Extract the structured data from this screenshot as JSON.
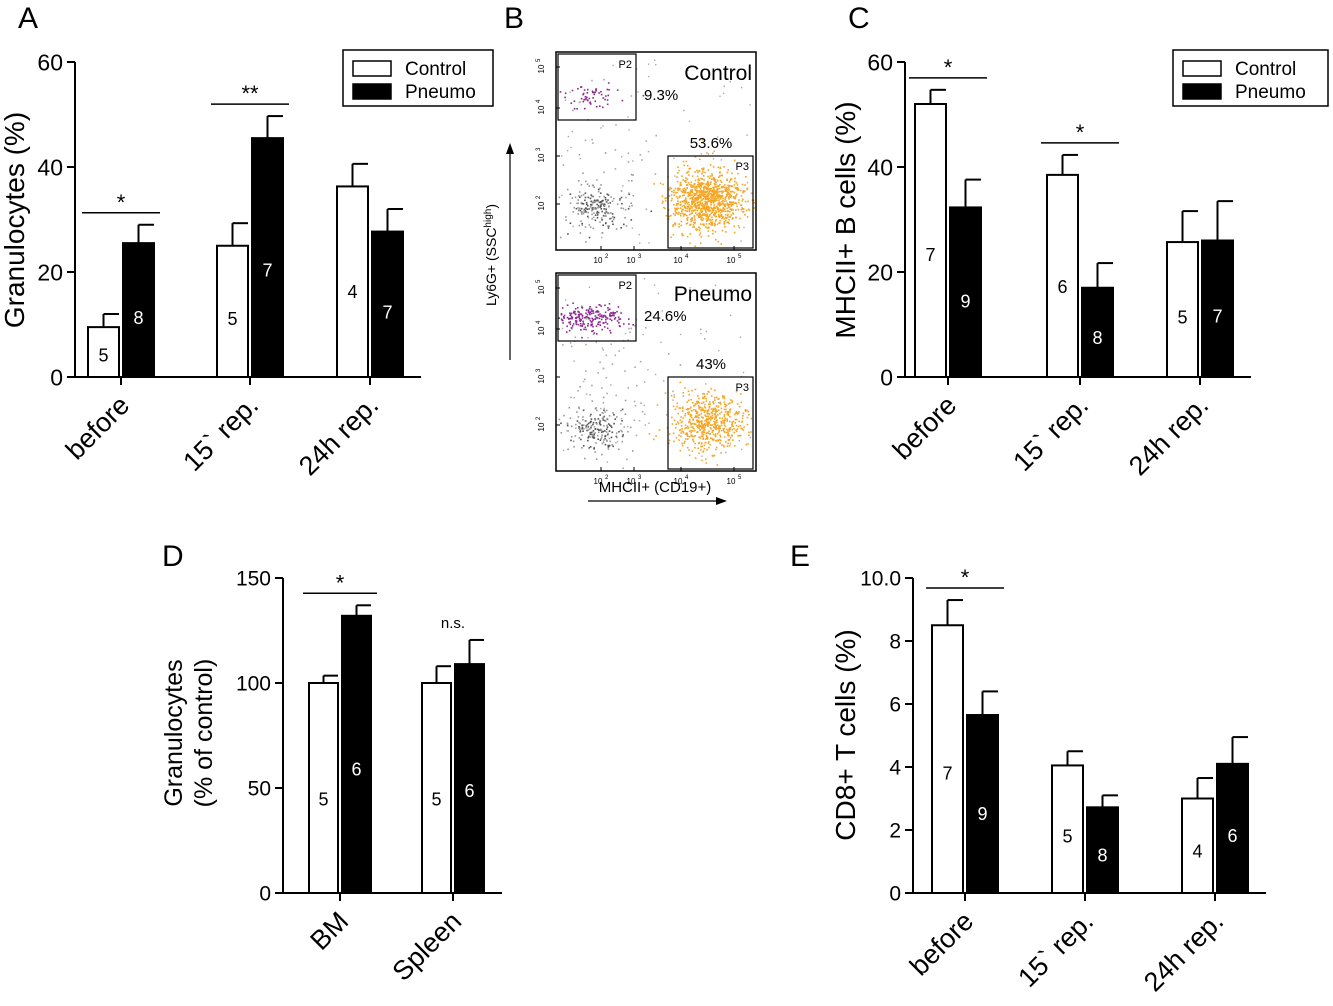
{
  "panels": {
    "A": {
      "letter": "A"
    },
    "B": {
      "letter": "B"
    },
    "C": {
      "letter": "C"
    },
    "D": {
      "letter": "D"
    },
    "E": {
      "letter": "E"
    }
  },
  "legend": {
    "control": "Control",
    "pneumo": "Pneumo"
  },
  "colors": {
    "control_fill": "#ffffff",
    "pneumo_fill": "#000000",
    "p2_dots": "#8b2a8f",
    "p3_dots": "#f5a623",
    "grey_dots": "#888888"
  },
  "chart_data": [
    {
      "panel": "A",
      "type": "bar",
      "ylabel": "Granulocytes (%)",
      "ylim": [
        0,
        60
      ],
      "yticks": [
        0,
        20,
        40,
        60
      ],
      "categories": [
        "before",
        "15` rep.",
        "24h rep."
      ],
      "series": [
        {
          "name": "Control",
          "values": [
            9.5,
            25,
            36.3
          ],
          "errors": [
            2.5,
            4.3,
            4.3
          ],
          "n": [
            "5",
            "5",
            "4"
          ]
        },
        {
          "name": "Pneumo",
          "values": [
            25.5,
            45.5,
            27.7
          ],
          "errors": [
            3.5,
            4.2,
            4.3
          ],
          "n": [
            "8",
            "7",
            "7"
          ]
        }
      ],
      "significance": [
        {
          "category": 0,
          "label": "*"
        },
        {
          "category": 1,
          "label": "**"
        }
      ],
      "legend_position": "top-right"
    },
    {
      "panel": "B",
      "type": "scatter",
      "xlabel": "MHCII+ (CD19+)",
      "ylabel": "Ly6G+ (SSC",
      "ylabel_sup": "high",
      "ylabel_end": ")",
      "x_ticks": [
        "10",
        "10",
        "10",
        "10"
      ],
      "x_tick_exp": [
        "2",
        "3",
        "4",
        "5"
      ],
      "y_ticks": [
        "10",
        "10",
        "10",
        "10"
      ],
      "y_tick_exp": [
        "2",
        "3",
        "4",
        "5"
      ],
      "plots": [
        {
          "name": "Control",
          "gates": [
            {
              "label": "P2",
              "percent": "9.3%"
            },
            {
              "label": "P3",
              "percent": "53.6%"
            }
          ]
        },
        {
          "name": "Pneumo",
          "gates": [
            {
              "label": "P2",
              "percent": "24.6%"
            },
            {
              "label": "P3",
              "percent": "43%"
            }
          ]
        }
      ]
    },
    {
      "panel": "C",
      "type": "bar",
      "ylabel": "MHCII+ B cells (%)",
      "ylim": [
        0,
        60
      ],
      "yticks": [
        0,
        20,
        40,
        60
      ],
      "categories": [
        "before",
        "15` rep.",
        "24h rep."
      ],
      "series": [
        {
          "name": "Control",
          "values": [
            52,
            38.5,
            25.7
          ],
          "errors": [
            2.7,
            3.8,
            5.9
          ],
          "n": [
            "7",
            "6",
            "5"
          ]
        },
        {
          "name": "Pneumo",
          "values": [
            32.3,
            17,
            26
          ],
          "errors": [
            5.3,
            4.7,
            7.5
          ],
          "n": [
            "9",
            "8",
            "7"
          ]
        }
      ],
      "significance": [
        {
          "category": 0,
          "label": "*"
        },
        {
          "category": 1,
          "label": "*"
        }
      ],
      "legend_position": "top-right"
    },
    {
      "panel": "D",
      "type": "bar",
      "ylabel": "Granulocytes",
      "ylabel2": "(% of control)",
      "ylim": [
        0,
        150
      ],
      "yticks": [
        0,
        50,
        100,
        150
      ],
      "categories": [
        "BM",
        "Spleen"
      ],
      "series": [
        {
          "name": "Control",
          "values": [
            100,
            100
          ],
          "errors": [
            3.5,
            8
          ],
          "n": [
            "5",
            "5"
          ]
        },
        {
          "name": "Pneumo",
          "values": [
            132,
            109
          ],
          "errors": [
            5,
            11.5
          ],
          "n": [
            "6",
            "6"
          ]
        }
      ],
      "significance": [
        {
          "category": 0,
          "label": "*"
        },
        {
          "category": 1,
          "label": "n.s."
        }
      ]
    },
    {
      "panel": "E",
      "type": "bar",
      "ylabel": "CD8+ T cells (%)",
      "ylim": [
        0,
        10
      ],
      "yticks": [
        0,
        2,
        4,
        6,
        8,
        10
      ],
      "ytick_labels": [
        "0",
        "2",
        "4",
        "6",
        "8",
        "10.0"
      ],
      "categories": [
        "before",
        "15` rep.",
        "24h rep."
      ],
      "series": [
        {
          "name": "Control",
          "values": [
            8.5,
            4.05,
            3
          ],
          "errors": [
            0.8,
            0.45,
            0.65
          ],
          "n": [
            "7",
            "5",
            "4"
          ]
        },
        {
          "name": "Pneumo",
          "values": [
            5.65,
            2.72,
            4.1
          ],
          "errors": [
            0.75,
            0.38,
            0.85
          ],
          "n": [
            "9",
            "8",
            "6"
          ]
        }
      ],
      "significance": [
        {
          "category": 0,
          "label": "*"
        }
      ]
    }
  ]
}
